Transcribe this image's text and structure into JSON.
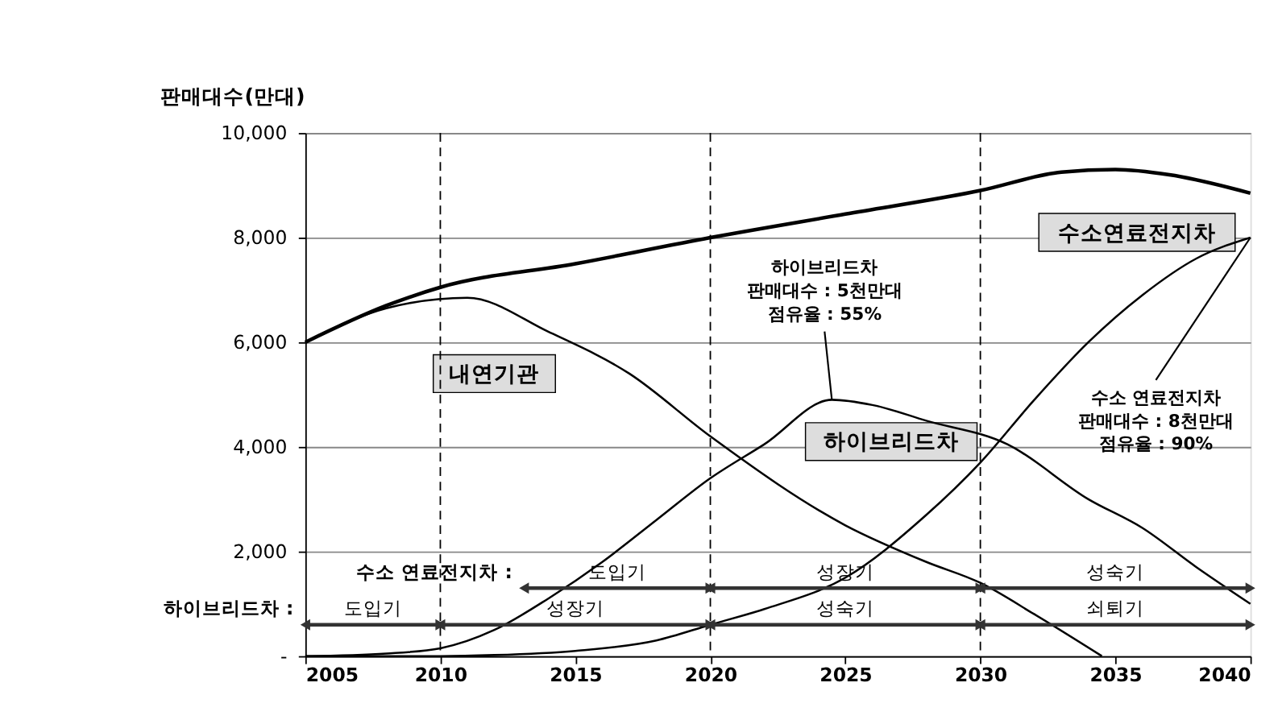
{
  "chart_data": {
    "type": "line",
    "ylabel": "판매대수(만대)",
    "xlim": [
      2005,
      2040
    ],
    "xticks": [
      2005,
      2010,
      2015,
      2020,
      2025,
      2030,
      2035,
      2040
    ],
    "ylim": [
      0,
      10000
    ],
    "yticks": [
      {
        "value": 0,
        "label": "-"
      },
      {
        "value": 2000,
        "label": "2,000"
      },
      {
        "value": 4000,
        "label": "4,000"
      },
      {
        "value": 6000,
        "label": "6,000"
      },
      {
        "value": 8000,
        "label": "8,000"
      },
      {
        "value": 10000,
        "label": "10,000"
      }
    ],
    "grid": "y",
    "legend": false,
    "marker": "none",
    "line_style": "solid",
    "series": [
      {
        "color": "#000000",
        "x": [
          2005,
          2008,
          2010,
          2015,
          2020,
          2025,
          2030,
          2033,
          2035,
          2037,
          2040
        ],
        "values": [
          6000,
          6700,
          7050,
          7500,
          8000,
          8450,
          8900,
          9250,
          9300,
          9200,
          8850
        ]
      },
      {
        "name": "내연기관",
        "color": "#000000",
        "x": [
          2005,
          2008,
          2011,
          2014,
          2017,
          2020,
          2025,
          2028,
          2030,
          2032,
          2034.5
        ],
        "values": [
          6000,
          6650,
          6850,
          6200,
          5400,
          4200,
          2500,
          1800,
          1400,
          800,
          0
        ]
      },
      {
        "name": "하이브리드차",
        "color": "#000000",
        "x": [
          2005,
          2008,
          2010,
          2012,
          2014,
          2016,
          2018,
          2020,
          2022,
          2024.5,
          2026,
          2028,
          2031,
          2034,
          2036,
          2038,
          2040
        ],
        "values": [
          0,
          50,
          150,
          500,
          1100,
          1800,
          2600,
          3400,
          4050,
          4900,
          4800,
          4500,
          4050,
          3000,
          2450,
          1700,
          1000
        ]
      },
      {
        "name": "수소연료전지차",
        "color": "#000000",
        "x": [
          2005,
          2010,
          2012,
          2015,
          2018,
          2020,
          2022,
          2025,
          2028,
          2030,
          2032,
          2034,
          2036,
          2038,
          2040
        ],
        "values": [
          0,
          0,
          20,
          100,
          300,
          600,
          900,
          1500,
          2700,
          3700,
          4900,
          6000,
          6900,
          7600,
          8000
        ]
      }
    ],
    "ref_lines": [
      {
        "axis": "x",
        "value": 2010,
        "line_style": "dashed"
      },
      {
        "axis": "x",
        "value": 2020,
        "line_style": "dashed"
      },
      {
        "axis": "x",
        "value": 2030,
        "line_style": "dashed"
      }
    ],
    "annotations": [
      "수소 연료전지차 :",
      "도입기",
      "성장기",
      "성숙기",
      "하이브리드차 :",
      "도입기",
      "성장기",
      "성숙기",
      "쇠퇴기",
      {
        "text": "하이브리드차\n판매대수 : 5천만대\n점유율 : 55%",
        "x": 2024.5,
        "y": 4900
      },
      {
        "text": "수소 연료전지차\n판매대수 : 8천만대\n점유율 : 90%",
        "x": 2040,
        "y": 8000
      }
    ]
  }
}
